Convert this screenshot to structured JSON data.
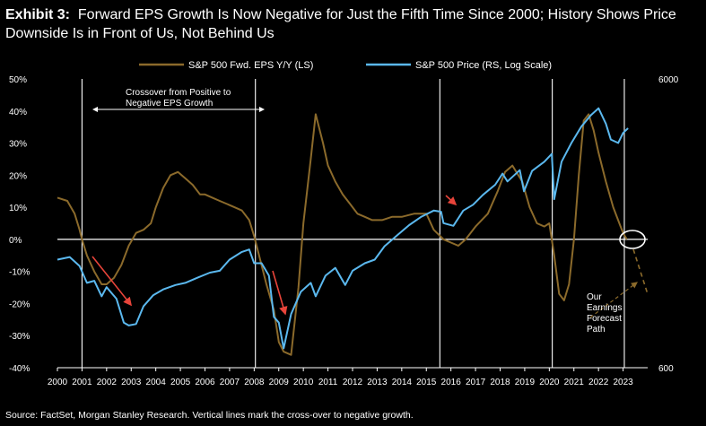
{
  "title": {
    "exhibit": "Exhibit 3:",
    "text": "Forward EPS Growth Is Now Negative for Just the Fifth Time Since 2000; History Shows Price Downside Is in Front of Us, Not Behind Us"
  },
  "source": "Source: FactSet, Morgan Stanley Research. Vertical lines mark the cross-over to negative growth.",
  "colors": {
    "eps": "#8B6A2B",
    "price": "#5BB8EE",
    "background": "#000000",
    "arrow_red": "#E8443A"
  },
  "chart_data": {
    "type": "line",
    "title": "Forward EPS Growth Is Now Negative for Just the Fifth Time Since 2000; History Shows Price Downside Is in Front of Us, Not Behind Us",
    "x_ticks": [
      "2000",
      "2001",
      "2002",
      "2003",
      "2004",
      "2005",
      "2006",
      "2007",
      "2008",
      "2009",
      "2010",
      "2011",
      "2012",
      "2013",
      "2014",
      "2015",
      "2016",
      "2017",
      "2018",
      "2019",
      "2020",
      "2021",
      "2022",
      "2023"
    ],
    "xlim": [
      2000,
      2024
    ],
    "y_left": {
      "lim": [
        -40,
        50
      ],
      "ticks": [
        "50%",
        "40%",
        "30%",
        "20%",
        "10%",
        "0%",
        "-10%",
        "-20%",
        "-30%",
        "-40%"
      ]
    },
    "y_right": {
      "lim": [
        600,
        6000
      ],
      "scale": "log",
      "ticks": [
        "6000",
        "600"
      ]
    },
    "legend": {
      "position": "top",
      "entries": [
        "S&P 500 Fwd. EPS Y/Y (LS)",
        "S&P 500 Price (RS, Log Scale)"
      ]
    },
    "series": [
      {
        "name": "S&P 500 Fwd. EPS Y/Y (LS)",
        "axis": "left",
        "points": [
          [
            2000.0,
            13
          ],
          [
            2000.4,
            12
          ],
          [
            2000.7,
            8
          ],
          [
            2000.9,
            3
          ],
          [
            2001.0,
            0
          ],
          [
            2001.2,
            -5
          ],
          [
            2001.5,
            -10
          ],
          [
            2001.8,
            -14
          ],
          [
            2002.0,
            -14
          ],
          [
            2002.3,
            -12
          ],
          [
            2002.6,
            -8
          ],
          [
            2002.9,
            -2
          ],
          [
            2003.2,
            2
          ],
          [
            2003.5,
            3
          ],
          [
            2003.8,
            5
          ],
          [
            2004.0,
            10
          ],
          [
            2004.3,
            16
          ],
          [
            2004.6,
            20
          ],
          [
            2004.9,
            21
          ],
          [
            2005.2,
            19
          ],
          [
            2005.5,
            17
          ],
          [
            2005.8,
            14
          ],
          [
            2006.0,
            14
          ],
          [
            2006.3,
            13
          ],
          [
            2006.6,
            12
          ],
          [
            2006.9,
            11
          ],
          [
            2007.2,
            10
          ],
          [
            2007.5,
            9
          ],
          [
            2007.8,
            6
          ],
          [
            2008.0,
            1
          ],
          [
            2008.2,
            -5
          ],
          [
            2008.5,
            -14
          ],
          [
            2008.8,
            -22
          ],
          [
            2009.0,
            -32
          ],
          [
            2009.2,
            -35
          ],
          [
            2009.5,
            -36
          ],
          [
            2009.8,
            -15
          ],
          [
            2010.0,
            5
          ],
          [
            2010.3,
            25
          ],
          [
            2010.5,
            39
          ],
          [
            2010.8,
            30
          ],
          [
            2011.0,
            23
          ],
          [
            2011.3,
            18
          ],
          [
            2011.6,
            14
          ],
          [
            2011.9,
            11
          ],
          [
            2012.2,
            8
          ],
          [
            2012.5,
            7
          ],
          [
            2012.8,
            6
          ],
          [
            2013.2,
            6
          ],
          [
            2013.6,
            7
          ],
          [
            2014.0,
            7
          ],
          [
            2014.5,
            8
          ],
          [
            2015.0,
            8
          ],
          [
            2015.3,
            3
          ],
          [
            2015.7,
            0
          ],
          [
            2016.0,
            -1
          ],
          [
            2016.3,
            -2
          ],
          [
            2016.6,
            0
          ],
          [
            2017.0,
            4
          ],
          [
            2017.5,
            8
          ],
          [
            2017.9,
            15
          ],
          [
            2018.2,
            21
          ],
          [
            2018.5,
            23
          ],
          [
            2018.9,
            18
          ],
          [
            2019.2,
            10
          ],
          [
            2019.5,
            5
          ],
          [
            2019.8,
            4
          ],
          [
            2020.0,
            5
          ],
          [
            2020.2,
            -5
          ],
          [
            2020.4,
            -17
          ],
          [
            2020.6,
            -19
          ],
          [
            2020.8,
            -14
          ],
          [
            2021.0,
            0
          ],
          [
            2021.2,
            20
          ],
          [
            2021.4,
            37
          ],
          [
            2021.6,
            39
          ],
          [
            2021.8,
            34
          ],
          [
            2022.0,
            27
          ],
          [
            2022.3,
            18
          ],
          [
            2022.6,
            10
          ],
          [
            2022.9,
            4
          ],
          [
            2023.0,
            2
          ],
          [
            2023.15,
            0
          ]
        ]
      },
      {
        "name": "S&P 500 Price (RS, Log Scale)",
        "axis": "right",
        "points": [
          [
            2000.0,
            1420
          ],
          [
            2000.5,
            1450
          ],
          [
            2000.9,
            1350
          ],
          [
            2001.2,
            1180
          ],
          [
            2001.5,
            1200
          ],
          [
            2001.8,
            1060
          ],
          [
            2002.0,
            1140
          ],
          [
            2002.4,
            1040
          ],
          [
            2002.7,
            860
          ],
          [
            2002.9,
            840
          ],
          [
            2003.2,
            850
          ],
          [
            2003.5,
            980
          ],
          [
            2003.9,
            1070
          ],
          [
            2004.3,
            1120
          ],
          [
            2004.8,
            1160
          ],
          [
            2005.2,
            1180
          ],
          [
            2005.7,
            1230
          ],
          [
            2006.2,
            1280
          ],
          [
            2006.6,
            1300
          ],
          [
            2007.0,
            1420
          ],
          [
            2007.5,
            1510
          ],
          [
            2007.8,
            1540
          ],
          [
            2008.0,
            1380
          ],
          [
            2008.3,
            1380
          ],
          [
            2008.6,
            1250
          ],
          [
            2008.8,
            900
          ],
          [
            2009.0,
            860
          ],
          [
            2009.2,
            700
          ],
          [
            2009.5,
            920
          ],
          [
            2009.9,
            1100
          ],
          [
            2010.3,
            1180
          ],
          [
            2010.5,
            1060
          ],
          [
            2010.9,
            1250
          ],
          [
            2011.3,
            1330
          ],
          [
            2011.7,
            1160
          ],
          [
            2012.0,
            1300
          ],
          [
            2012.5,
            1380
          ],
          [
            2012.9,
            1420
          ],
          [
            2013.3,
            1580
          ],
          [
            2013.8,
            1720
          ],
          [
            2014.3,
            1870
          ],
          [
            2014.8,
            2000
          ],
          [
            2015.3,
            2100
          ],
          [
            2015.6,
            2080
          ],
          [
            2015.7,
            1900
          ],
          [
            2016.1,
            1860
          ],
          [
            2016.5,
            2100
          ],
          [
            2016.9,
            2200
          ],
          [
            2017.3,
            2380
          ],
          [
            2017.8,
            2580
          ],
          [
            2018.1,
            2820
          ],
          [
            2018.3,
            2650
          ],
          [
            2018.8,
            2900
          ],
          [
            2018.97,
            2450
          ],
          [
            2019.3,
            2880
          ],
          [
            2019.8,
            3100
          ],
          [
            2020.1,
            3300
          ],
          [
            2020.2,
            2300
          ],
          [
            2020.5,
            3100
          ],
          [
            2020.9,
            3600
          ],
          [
            2021.3,
            4100
          ],
          [
            2021.7,
            4500
          ],
          [
            2022.0,
            4750
          ],
          [
            2022.3,
            4200
          ],
          [
            2022.5,
            3700
          ],
          [
            2022.8,
            3600
          ],
          [
            2023.0,
            3900
          ],
          [
            2023.2,
            4050
          ]
        ]
      }
    ],
    "crossover_lines": [
      2001.0,
      2008.05,
      2015.55,
      2020.12,
      2023.05
    ],
    "annotations": {
      "crossover": "Crossover from Positive to Negative EPS Growth",
      "forecast": "Our Earnings Forecast Path"
    }
  }
}
